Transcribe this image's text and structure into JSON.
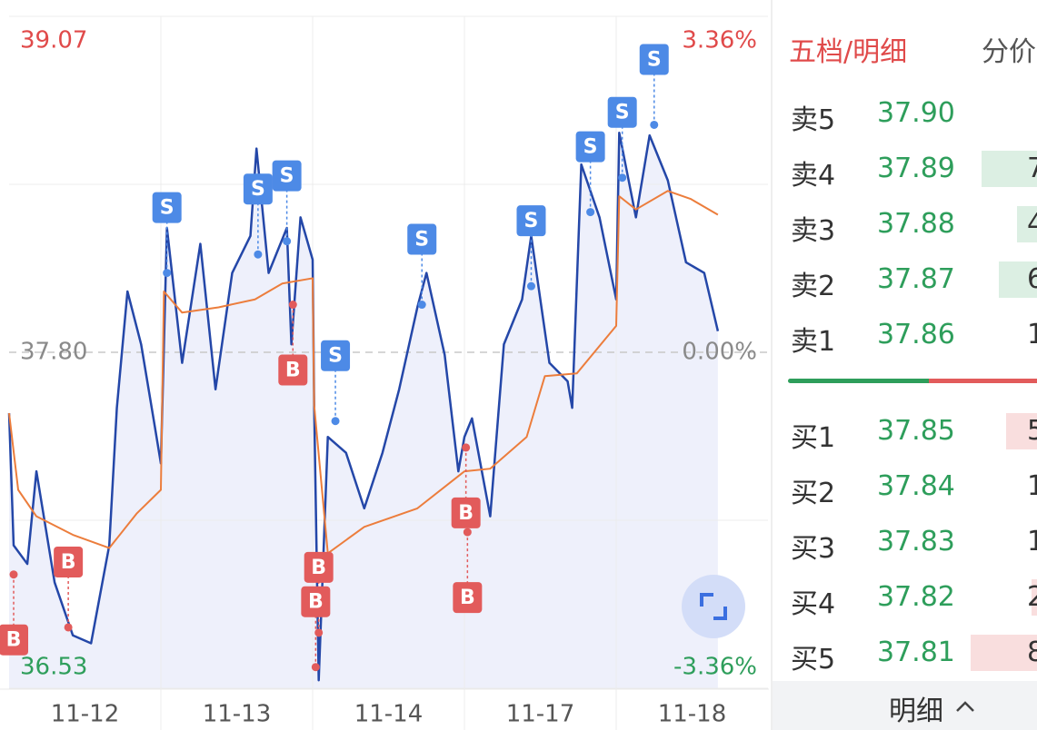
{
  "chart_data": {
    "type": "line",
    "xlim": [
      0,
      5
    ],
    "xticks": [
      {
        "value": 0.5,
        "label": "11-12"
      },
      {
        "value": 1,
        "label": null
      },
      {
        "value": 1.5,
        "label": "11-13"
      },
      {
        "value": 2,
        "label": null
      },
      {
        "value": 2.5,
        "label": "11-14"
      },
      {
        "value": 3,
        "label": null
      },
      {
        "value": 3.5,
        "label": "11-17"
      },
      {
        "value": 4,
        "label": null
      },
      {
        "value": 4.5,
        "label": "11-18"
      }
    ],
    "ylim": [
      36.53,
      39.07
    ],
    "yticks": [
      39.07,
      {
        "value": 38.435,
        "label": null
      },
      {
        "value": 37.8,
        "label": "37.80"
      },
      {
        "value": 37.165,
        "label": null
      },
      36.53
    ],
    "y2lim": [
      -3.36,
      3.36
    ],
    "y2ticks": [
      {
        "value": 3.36,
        "label": "3.36%"
      },
      {
        "value": 0,
        "label": "0.00%"
      },
      {
        "value": -3.36,
        "label": "-3.36%"
      }
    ],
    "series": [
      {
        "color": "#2447a8",
        "x": [
          0,
          0.03,
          0.12,
          0.18,
          0.3,
          0.42,
          0.54,
          0.66,
          0.71,
          0.78,
          0.87,
          0.96,
          1.0,
          1.04,
          1.14,
          1.26,
          1.36,
          1.47,
          1.59,
          1.63,
          1.71,
          1.83,
          1.86,
          1.92,
          2.0,
          2.01,
          2.04,
          2.1,
          2.22,
          2.34,
          2.46,
          2.57,
          2.69,
          2.75,
          2.87,
          2.96,
          3.0,
          3.05,
          3.17,
          3.26,
          3.38,
          3.44,
          3.56,
          3.68,
          3.71,
          3.77,
          3.89,
          4.0,
          4.02,
          4.13,
          4.22,
          4.34,
          4.46,
          4.58,
          4.67
        ],
        "values": [
          37.57,
          37.07,
          37.0,
          37.35,
          36.93,
          36.73,
          36.7,
          37.07,
          37.59,
          38.03,
          37.83,
          37.52,
          37.38,
          38.27,
          37.76,
          38.21,
          37.66,
          38.1,
          38.24,
          38.57,
          38.1,
          38.27,
          37.83,
          38.31,
          38.15,
          37.6,
          36.56,
          37.48,
          37.42,
          37.21,
          37.42,
          37.66,
          37.97,
          38.1,
          37.79,
          37.35,
          37.48,
          37.55,
          37.18,
          37.83,
          38.0,
          38.24,
          37.76,
          37.69,
          37.59,
          38.51,
          38.31,
          38.0,
          38.63,
          38.31,
          38.62,
          38.45,
          38.14,
          38.1,
          37.88
        ]
      },
      {
        "color": "#ec7d3c",
        "x": [
          0,
          0.06,
          0.18,
          0.42,
          0.66,
          0.84,
          1.0,
          1.02,
          1.14,
          1.38,
          1.62,
          1.8,
          2.0,
          2.01,
          2.1,
          2.34,
          2.69,
          3.0,
          3.17,
          3.41,
          3.53,
          3.74,
          4.0,
          4.02,
          4.13,
          4.34,
          4.49,
          4.67
        ],
        "values": [
          37.57,
          37.28,
          37.18,
          37.11,
          37.06,
          37.19,
          37.28,
          38.03,
          37.95,
          37.97,
          38.0,
          38.06,
          38.08,
          37.6,
          37.04,
          37.14,
          37.21,
          37.35,
          37.36,
          37.48,
          37.71,
          37.72,
          37.9,
          38.39,
          38.34,
          38.41,
          38.38,
          38.32
        ]
      }
    ],
    "area_color": "#eef0fb",
    "marker_colors": {
      "S": "#4d8ae6",
      "B": "#e25b5b"
    },
    "trades": [
      {
        "label": "S",
        "x": 1.04,
        "value": 38.1
      },
      {
        "label": "S",
        "x": 1.64,
        "value": 38.17
      },
      {
        "label": "S",
        "x": 1.83,
        "value": 38.22
      },
      {
        "label": "S",
        "x": 2.15,
        "value": 37.54
      },
      {
        "label": "S",
        "x": 2.72,
        "value": 37.98
      },
      {
        "label": "S",
        "x": 3.44,
        "value": 38.05
      },
      {
        "label": "S",
        "x": 3.83,
        "value": 38.33
      },
      {
        "label": "S",
        "x": 4.04,
        "value": 38.46
      },
      {
        "label": "S",
        "x": 4.25,
        "value": 38.66
      },
      {
        "label": "B",
        "x": 0.03,
        "value": 36.96
      },
      {
        "label": "B",
        "x": 0.39,
        "value": 36.76
      },
      {
        "label": "B",
        "x": 1.87,
        "value": 37.98
      },
      {
        "label": "B",
        "x": 2.04,
        "value": 36.74
      },
      {
        "label": "B",
        "x": 2.02,
        "value": 36.61
      },
      {
        "label": "B",
        "x": 3.01,
        "value": 37.44
      },
      {
        "label": "B",
        "x": 3.02,
        "value": 37.12
      }
    ]
  },
  "order_book": {
    "tabs": [
      "五档/明细",
      "分价"
    ],
    "asks": [
      {
        "label": "卖5",
        "price": "37.90"
      },
      {
        "label": "卖4",
        "price": "37.89",
        "volume": "7"
      },
      {
        "label": "卖3",
        "price": "37.88",
        "volume": "4"
      },
      {
        "label": "卖2",
        "price": "37.87",
        "volume": "6"
      },
      {
        "label": "卖1",
        "price": "37.86",
        "volume": "1"
      }
    ],
    "bids": [
      {
        "label": "买1",
        "price": "37.85",
        "volume": "5"
      },
      {
        "label": "买2",
        "price": "37.84",
        "volume": "1"
      },
      {
        "label": "买3",
        "price": "37.83",
        "volume": "1"
      },
      {
        "label": "买4",
        "price": "37.82",
        "volume": "2"
      },
      {
        "label": "买5",
        "price": "37.81",
        "volume": "8"
      }
    ],
    "footer": "明细"
  }
}
